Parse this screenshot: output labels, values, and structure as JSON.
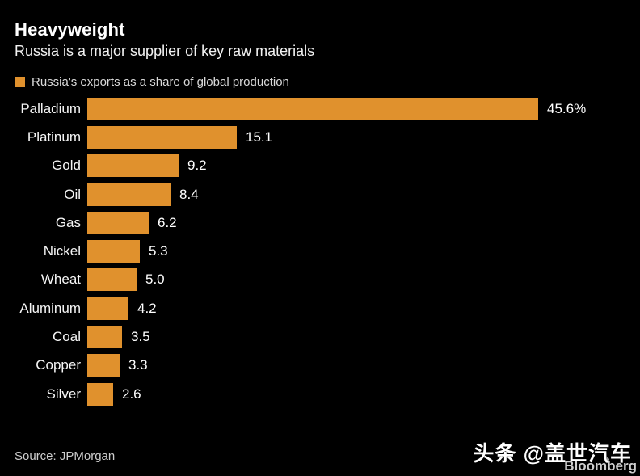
{
  "header": {
    "title": "Heavyweight",
    "subtitle": "Russia is a major supplier of key raw materials"
  },
  "legend": {
    "label": "Russia's exports as a share of global production",
    "swatch_color": "#E0912D"
  },
  "chart_data": {
    "type": "bar",
    "orientation": "horizontal",
    "title": "Heavyweight",
    "subtitle": "Russia is a major supplier of key raw materials",
    "series_name": "Russia's exports as a share of global production",
    "categories": [
      "Palladium",
      "Platinum",
      "Gold",
      "Oil",
      "Gas",
      "Nickel",
      "Wheat",
      "Aluminum",
      "Coal",
      "Copper",
      "Silver"
    ],
    "values": [
      45.6,
      15.1,
      9.2,
      8.4,
      6.2,
      5.3,
      5.0,
      4.2,
      3.5,
      3.3,
      2.6
    ],
    "value_labels": [
      "45.6%",
      "15.1",
      "9.2",
      "8.4",
      "6.2",
      "5.3",
      "5.0",
      "4.2",
      "3.5",
      "3.3",
      "2.6"
    ],
    "unit": "percent",
    "xlim": [
      0,
      45.6
    ],
    "grid": false,
    "legend_position": "top",
    "bar_color": "#E0912D",
    "background_color": "#000000"
  },
  "footer": {
    "source": "Source: JPMorgan",
    "watermark": "头条 @盖世汽车",
    "brand": "Bloomberg"
  }
}
